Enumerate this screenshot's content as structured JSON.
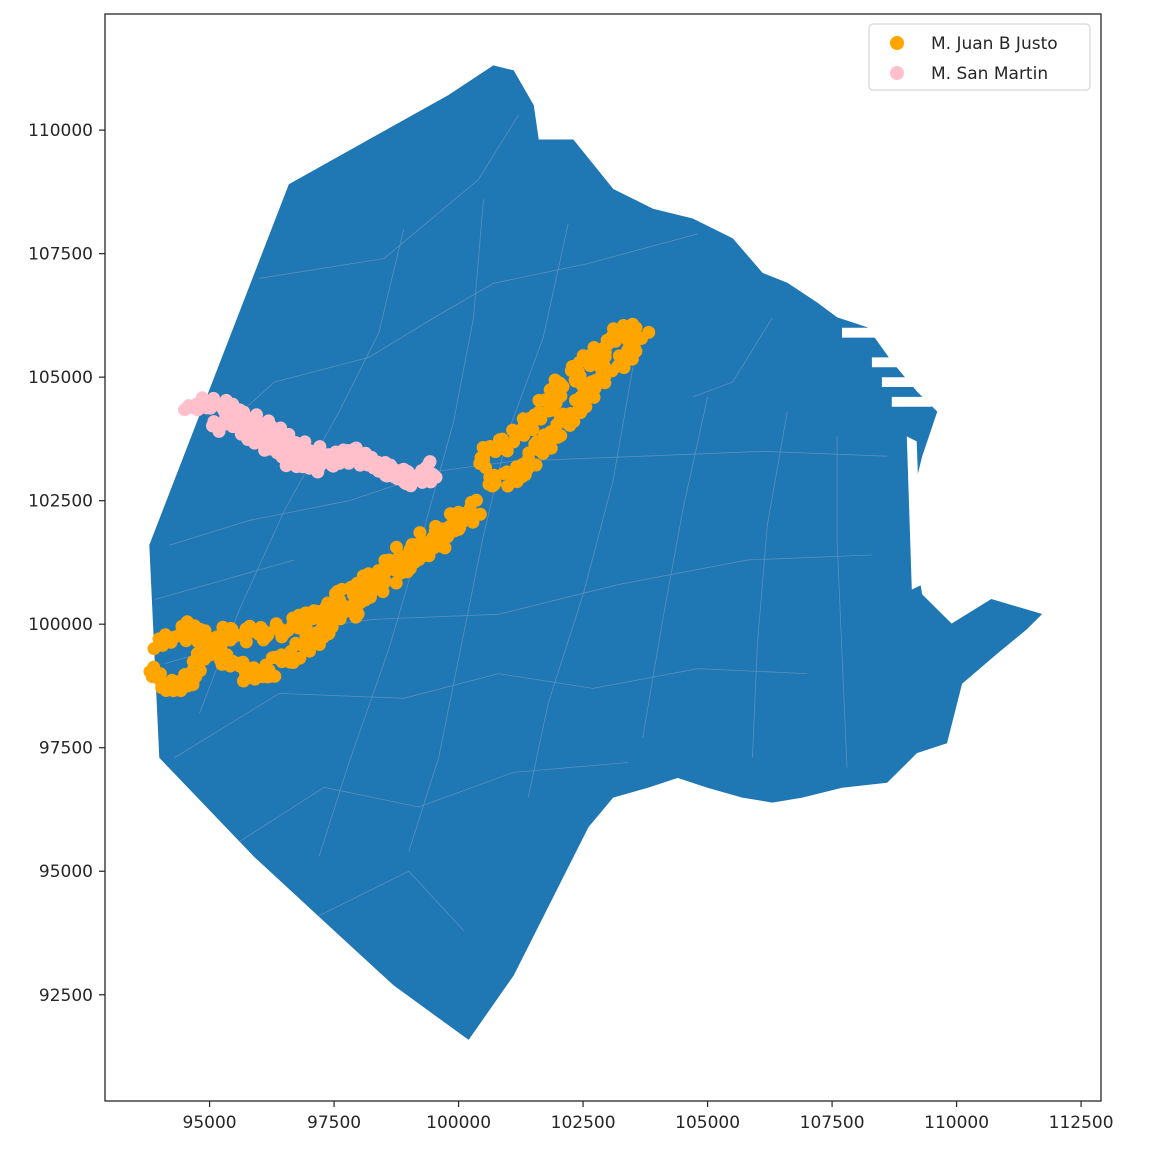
{
  "chart_data": {
    "type": "scatter",
    "title": "",
    "xlabel": "",
    "ylabel": "",
    "xlim": [
      92900,
      112900
    ],
    "ylim": [
      90350,
      112350
    ],
    "grid": false,
    "x_ticks": [
      95000,
      97500,
      100000,
      102500,
      105000,
      107500,
      110000,
      112500
    ],
    "y_ticks": [
      92500,
      95000,
      97500,
      100000,
      102500,
      105000,
      107500,
      110000
    ],
    "x_tick_labels": [
      "95000",
      "97500",
      "100000",
      "102500",
      "105000",
      "107500",
      "110000",
      "112500"
    ],
    "y_tick_labels": [
      "92500",
      "95000",
      "97500",
      "100000",
      "102500",
      "105000",
      "107500",
      "110000"
    ],
    "legend_position": "upper right",
    "background_map": {
      "name": "city-boundary-map",
      "color": "#1f77b4",
      "edge_color": "#5a8fc0",
      "outline": [
        [
          96600,
          108900
        ],
        [
          99800,
          110700
        ],
        [
          100700,
          111300
        ],
        [
          101100,
          111200
        ],
        [
          101500,
          110500
        ],
        [
          101600,
          109800
        ],
        [
          102300,
          109800
        ],
        [
          103100,
          108800
        ],
        [
          103900,
          108400
        ],
        [
          104700,
          108200
        ],
        [
          105500,
          107800
        ],
        [
          106100,
          107100
        ],
        [
          106600,
          106900
        ],
        [
          107200,
          106500
        ],
        [
          107600,
          106200
        ],
        [
          108200,
          106000
        ],
        [
          108700,
          105300
        ],
        [
          109200,
          104700
        ],
        [
          109600,
          104300
        ],
        [
          109300,
          103400
        ],
        [
          109100,
          102600
        ],
        [
          109200,
          101200
        ],
        [
          109300,
          100600
        ],
        [
          109900,
          100000
        ],
        [
          110700,
          100500
        ],
        [
          111700,
          100200
        ],
        [
          111400,
          99900
        ],
        [
          110800,
          99400
        ],
        [
          110100,
          98800
        ],
        [
          109800,
          97600
        ],
        [
          109200,
          97400
        ],
        [
          108600,
          96800
        ],
        [
          107700,
          96700
        ],
        [
          106900,
          96500
        ],
        [
          106300,
          96400
        ],
        [
          105700,
          96500
        ],
        [
          105000,
          96700
        ],
        [
          104400,
          96900
        ],
        [
          103800,
          96700
        ],
        [
          103100,
          96500
        ],
        [
          102600,
          95900
        ],
        [
          101900,
          94500
        ],
        [
          101100,
          92900
        ],
        [
          100200,
          91600
        ],
        [
          98700,
          92700
        ],
        [
          97300,
          94000
        ],
        [
          95900,
          95300
        ],
        [
          94000,
          97300
        ],
        [
          93800,
          101600
        ],
        [
          96600,
          108900
        ]
      ],
      "dock_gaps": [
        [
          [
            109000,
            103800
          ],
          [
            109200,
            103700
          ],
          [
            109300,
            100800
          ],
          [
            109100,
            100700
          ]
        ],
        [
          [
            108300,
            105400
          ],
          [
            108900,
            105400
          ],
          [
            108900,
            105200
          ],
          [
            108300,
            105200
          ]
        ],
        [
          [
            108500,
            105000
          ],
          [
            109200,
            105000
          ],
          [
            109200,
            104800
          ],
          [
            108500,
            104800
          ]
        ],
        [
          [
            108700,
            104600
          ],
          [
            109500,
            104600
          ],
          [
            109500,
            104400
          ],
          [
            108700,
            104400
          ]
        ],
        [
          [
            107700,
            106000
          ],
          [
            108400,
            106000
          ],
          [
            108400,
            105800
          ],
          [
            107700,
            105800
          ]
        ]
      ],
      "district_lines": [
        [
          [
            96000,
            107000
          ],
          [
            98500,
            107400
          ],
          [
            100400,
            109000
          ],
          [
            101200,
            110300
          ]
        ],
        [
          [
            95200,
            103900
          ],
          [
            96300,
            104900
          ],
          [
            98200,
            105400
          ],
          [
            99500,
            106200
          ],
          [
            100700,
            106900
          ],
          [
            102600,
            107300
          ],
          [
            104800,
            107900
          ]
        ],
        [
          [
            94200,
            101600
          ],
          [
            95800,
            102100
          ],
          [
            97800,
            102500
          ],
          [
            99600,
            103100
          ],
          [
            101100,
            103300
          ],
          [
            103700,
            103400
          ],
          [
            106100,
            103500
          ],
          [
            108600,
            103400
          ]
        ],
        [
          [
            94100,
            99200
          ],
          [
            96100,
            99800
          ],
          [
            98300,
            100100
          ],
          [
            100800,
            100200
          ],
          [
            103200,
            100800
          ],
          [
            105800,
            101300
          ],
          [
            108300,
            101400
          ]
        ],
        [
          [
            94300,
            97300
          ],
          [
            96400,
            98600
          ],
          [
            98900,
            98500
          ],
          [
            100800,
            99000
          ],
          [
            102700,
            98700
          ],
          [
            104800,
            99100
          ],
          [
            107000,
            99000
          ]
        ],
        [
          [
            95600,
            95600
          ],
          [
            97300,
            96700
          ],
          [
            99200,
            96300
          ],
          [
            101100,
            97000
          ],
          [
            103400,
            97200
          ]
        ],
        [
          [
            97200,
            94100
          ],
          [
            99000,
            95000
          ],
          [
            100100,
            93800
          ]
        ],
        [
          [
            98900,
            108000
          ],
          [
            98400,
            105900
          ],
          [
            97600,
            104300
          ],
          [
            96500,
            102300
          ],
          [
            95600,
            100300
          ],
          [
            94800,
            98200
          ]
        ],
        [
          [
            100500,
            108600
          ],
          [
            100300,
            106200
          ],
          [
            99900,
            104100
          ],
          [
            99300,
            101900
          ],
          [
            98600,
            99500
          ],
          [
            97800,
            97200
          ],
          [
            97200,
            95300
          ]
        ],
        [
          [
            102200,
            108100
          ],
          [
            101700,
            105800
          ],
          [
            101000,
            103900
          ],
          [
            100500,
            101800
          ],
          [
            100000,
            99300
          ],
          [
            99600,
            97300
          ],
          [
            99000,
            95400
          ]
        ],
        [
          [
            103500,
            105200
          ],
          [
            103100,
            102900
          ],
          [
            102500,
            100600
          ],
          [
            101800,
            98400
          ],
          [
            101400,
            96500
          ]
        ],
        [
          [
            105000,
            104600
          ],
          [
            104500,
            102300
          ],
          [
            104100,
            100100
          ],
          [
            103700,
            97700
          ]
        ],
        [
          [
            106600,
            104300
          ],
          [
            106200,
            102000
          ],
          [
            106000,
            99600
          ],
          [
            105900,
            97300
          ]
        ],
        [
          [
            107600,
            103800
          ],
          [
            107600,
            101700
          ],
          [
            107700,
            99400
          ],
          [
            107800,
            97100
          ]
        ],
        [
          [
            106300,
            106200
          ],
          [
            105500,
            104900
          ],
          [
            104700,
            104600
          ]
        ],
        [
          [
            93900,
            100500
          ],
          [
            95300,
            100900
          ],
          [
            96700,
            101300
          ]
        ]
      ]
    },
    "series": [
      {
        "name": "M. Juan B Justo",
        "color": "#ffa500",
        "cluster_paths": [
          [
            [
              93800,
              99000
            ],
            [
              94200,
              98700
            ],
            [
              94600,
              98900
            ],
            [
              94800,
              99300
            ],
            [
              95400,
              99800
            ],
            [
              96200,
              99800
            ],
            [
              96800,
              100000
            ],
            [
              97400,
              100400
            ],
            [
              98000,
              100700
            ],
            [
              98600,
              101200
            ],
            [
              99200,
              101600
            ],
            [
              99800,
              102000
            ],
            [
              100400,
              102400
            ]
          ],
          [
            [
              94000,
              99600
            ],
            [
              94600,
              99900
            ],
            [
              95200,
              99500
            ],
            [
              95700,
              99000
            ],
            [
              96200,
              99100
            ],
            [
              96700,
              99400
            ],
            [
              97200,
              99800
            ],
            [
              97800,
              100300
            ],
            [
              98400,
              100800
            ],
            [
              99000,
              101300
            ],
            [
              99600,
              101700
            ],
            [
              100200,
              102200
            ]
          ],
          [
            [
              100700,
              102800
            ],
            [
              101200,
              103100
            ],
            [
              101700,
              103600
            ],
            [
              102200,
              104200
            ],
            [
              102700,
              104800
            ],
            [
              103200,
              105300
            ],
            [
              103700,
              105900
            ]
          ],
          [
            [
              100400,
              103300
            ],
            [
              101000,
              103700
            ],
            [
              101500,
              104100
            ],
            [
              102000,
              104700
            ],
            [
              102500,
              105300
            ],
            [
              103000,
              105700
            ],
            [
              103400,
              106000
            ]
          ]
        ],
        "cluster_spread": 160
      },
      {
        "name": "M. San Martin",
        "color": "#ffc0cb",
        "cluster_paths": [
          [
            [
              94600,
              104400
            ],
            [
              95100,
              104500
            ],
            [
              95600,
              104300
            ],
            [
              96100,
              104000
            ],
            [
              96600,
              103700
            ],
            [
              97100,
              103500
            ],
            [
              97600,
              103400
            ],
            [
              98100,
              103300
            ],
            [
              98600,
              103100
            ],
            [
              99100,
              103000
            ],
            [
              99500,
              103000
            ]
          ],
          [
            [
              95000,
              104000
            ],
            [
              95500,
              104100
            ],
            [
              96000,
              103700
            ],
            [
              96500,
              103400
            ],
            [
              97000,
              103200
            ],
            [
              97500,
              103300
            ],
            [
              98000,
              103500
            ],
            [
              98500,
              103200
            ],
            [
              99000,
              102900
            ],
            [
              99400,
              103200
            ]
          ]
        ],
        "cluster_spread": 130
      }
    ]
  }
}
